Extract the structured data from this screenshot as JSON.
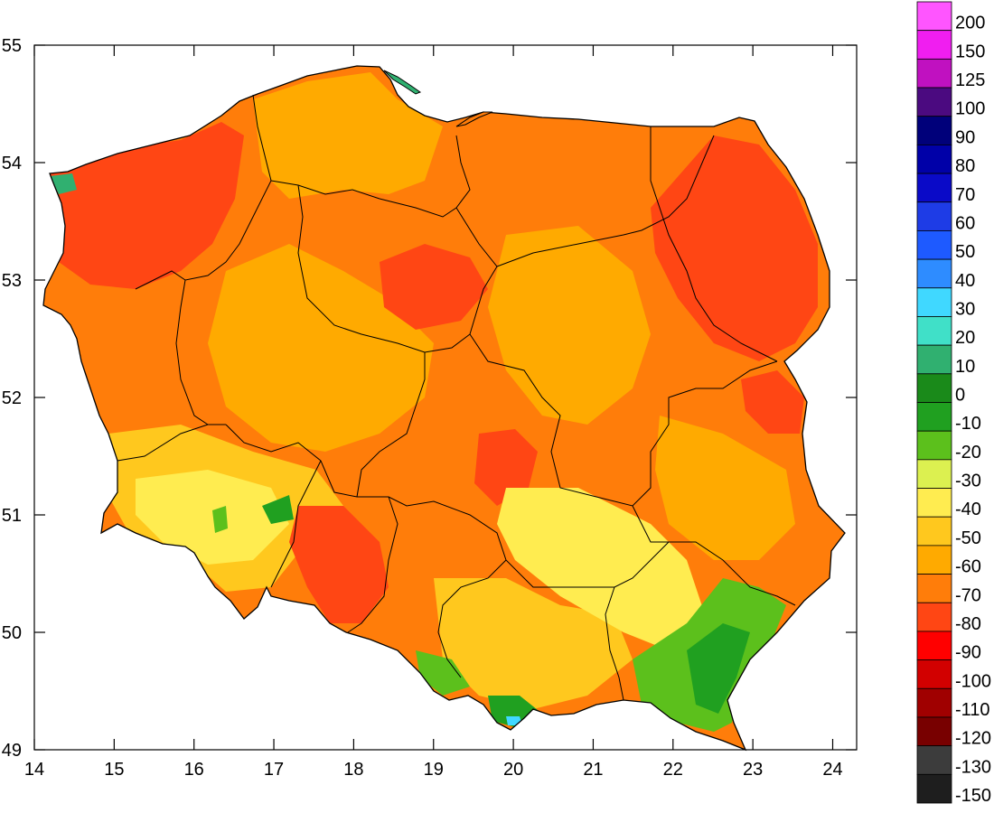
{
  "map": {
    "x_ticks": [
      "14",
      "15",
      "16",
      "17",
      "18",
      "19",
      "20",
      "21",
      "22",
      "23",
      "24"
    ],
    "y_ticks": [
      "55",
      "54",
      "53",
      "52",
      "51",
      "50",
      "49"
    ],
    "x_range": [
      14,
      24.3
    ],
    "y_range": [
      49,
      55
    ]
  },
  "legend": {
    "items": [
      {
        "label": "200",
        "color": "#ff55ff"
      },
      {
        "label": "150",
        "color": "#f01ef0"
      },
      {
        "label": "125",
        "color": "#c011c0"
      },
      {
        "label": "100",
        "color": "#4b0a80"
      },
      {
        "label": "90",
        "color": "#00007a"
      },
      {
        "label": "80",
        "color": "#0000a8"
      },
      {
        "label": "70",
        "color": "#0a0ac8"
      },
      {
        "label": "60",
        "color": "#1e3ce6"
      },
      {
        "label": "50",
        "color": "#1e5aff"
      },
      {
        "label": "40",
        "color": "#2e8cff"
      },
      {
        "label": "30",
        "color": "#40d8ff"
      },
      {
        "label": "20",
        "color": "#40e0c8"
      },
      {
        "label": "10",
        "color": "#30b070"
      },
      {
        "label": "0",
        "color": "#1a8a1a"
      },
      {
        "label": "-10",
        "color": "#20a020"
      },
      {
        "label": "-20",
        "color": "#5cc01c"
      },
      {
        "label": "-30",
        "color": "#dcf050"
      },
      {
        "label": "-40",
        "color": "#ffec50"
      },
      {
        "label": "-50",
        "color": "#ffc81e"
      },
      {
        "label": "-60",
        "color": "#ffaa00"
      },
      {
        "label": "-70",
        "color": "#ff7d0a"
      },
      {
        "label": "-80",
        "color": "#ff4614"
      },
      {
        "label": "-90",
        "color": "#ff0000"
      },
      {
        "label": "-100",
        "color": "#d20000"
      },
      {
        "label": "-110",
        "color": "#a00000"
      },
      {
        "label": "-120",
        "color": "#780000"
      },
      {
        "label": "-130",
        "color": "#3c3c3c"
      },
      {
        "label": "-150",
        "color": "#1e1e1e"
      }
    ]
  }
}
